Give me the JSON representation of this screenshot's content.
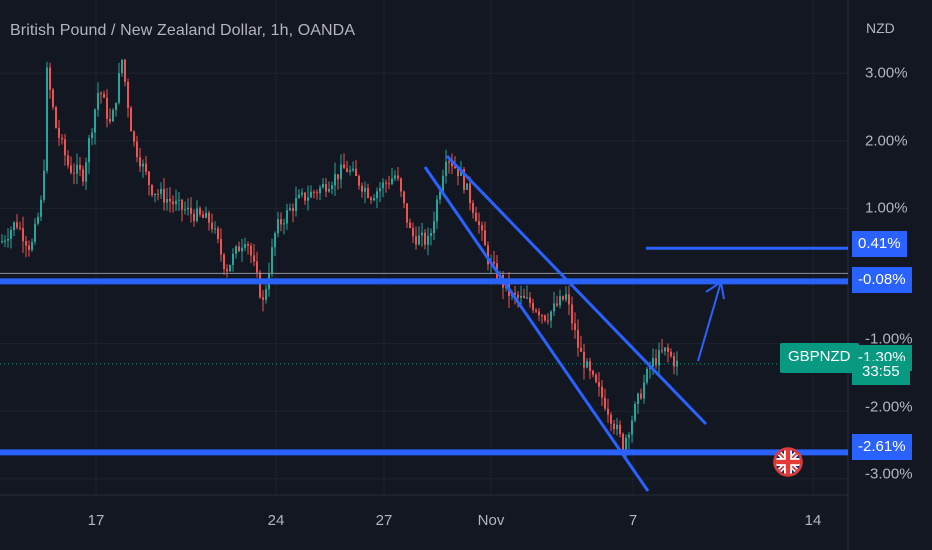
{
  "title": "British Pound / New Zealand Dollar, 1h, OANDA",
  "currency": "NZD",
  "symbol": "GBPNZD",
  "current_value": "-1.30%",
  "countdown": "33:55",
  "level_badges": [
    "0.41%",
    "-0.08%",
    "-2.61%"
  ],
  "colors": {
    "background": "#131722",
    "up": "#26a69a",
    "down": "#ef5350",
    "level": "#2962ff",
    "price_line": "#089981",
    "annotation": "#2962ff"
  },
  "chart_data": {
    "type": "candlestick",
    "title": "British Pound / New Zealand Dollar, 1h, OANDA",
    "y_unit": "NZD",
    "y_scale": "percent",
    "ylim": [
      -3.4,
      3.6
    ],
    "y_ticks": [
      "3.00%",
      "2.00%",
      "1.00%",
      "-1.00%",
      "-2.00%",
      "-3.00%"
    ],
    "x_ticks": [
      "17",
      "24",
      "27",
      "Nov",
      "7",
      "14"
    ],
    "current_price": -1.3,
    "horizontal_levels": [
      0.41,
      -0.08,
      -2.61
    ],
    "series_path": [
      [
        0,
        0.5
      ],
      [
        15,
        0.8
      ],
      [
        30,
        0.4
      ],
      [
        42,
        1.2
      ],
      [
        46,
        3.0
      ],
      [
        55,
        2.2
      ],
      [
        68,
        1.6
      ],
      [
        82,
        1.5
      ],
      [
        98,
        2.8
      ],
      [
        110,
        2.2
      ],
      [
        121,
        3.2
      ],
      [
        132,
        2.0
      ],
      [
        150,
        1.3
      ],
      [
        180,
        1.0
      ],
      [
        210,
        0.8
      ],
      [
        225,
        0.1
      ],
      [
        245,
        0.6
      ],
      [
        262,
        -0.4
      ],
      [
        275,
        0.7
      ],
      [
        295,
        1.1
      ],
      [
        320,
        1.3
      ],
      [
        345,
        1.6
      ],
      [
        370,
        1.2
      ],
      [
        395,
        1.5
      ],
      [
        410,
        0.6
      ],
      [
        428,
        0.5
      ],
      [
        445,
        1.8
      ],
      [
        460,
        1.5
      ],
      [
        475,
        0.9
      ],
      [
        488,
        0.2
      ],
      [
        510,
        -0.3
      ],
      [
        530,
        -0.4
      ],
      [
        545,
        -0.6
      ],
      [
        565,
        -0.3
      ],
      [
        578,
        -1.1
      ],
      [
        590,
        -1.5
      ],
      [
        605,
        -1.9
      ],
      [
        622,
        -2.5
      ],
      [
        638,
        -1.8
      ],
      [
        650,
        -1.3
      ],
      [
        665,
        -1.1
      ],
      [
        675,
        -1.3
      ]
    ]
  }
}
